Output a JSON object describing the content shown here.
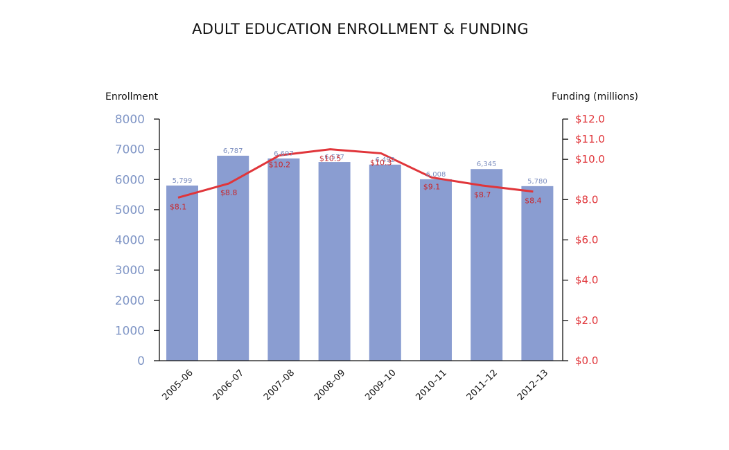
{
  "chart_data": {
    "type": "bar",
    "title": "ADULT EDUCATION ENROLLMENT & FUNDING",
    "categories": [
      "2005–06",
      "2006–07",
      "2007–08",
      "2008–09",
      "2009–10",
      "2010–11",
      "2011–12",
      "2012–13"
    ],
    "series": [
      {
        "type": "bar",
        "axis": "left",
        "values": [
          5799,
          6787,
          6697,
          6577,
          6492,
          6008,
          6345,
          5780
        ],
        "labels": [
          "5,799",
          "6,787",
          "6,697",
          "6,577",
          "6,492",
          "6,008",
          "6,345",
          "5,780"
        ],
        "color": "#8a9dd1"
      },
      {
        "type": "line",
        "axis": "right",
        "values": [
          8.1,
          8.8,
          10.2,
          10.5,
          10.3,
          9.1,
          8.7,
          8.4
        ],
        "labels": [
          "$8.1",
          "$8.8",
          "$10.2",
          "$10.5",
          "$10.3",
          "$9.1",
          "$8.7",
          "$8.4"
        ],
        "color": "#e0353a"
      }
    ],
    "ylabel_left": "Enrollment",
    "ylabel_right": "Funding (millions)",
    "ylim_left": [
      0,
      8000
    ],
    "ylim_right": [
      0,
      12
    ],
    "yticks_left": [
      "0",
      "1000",
      "2000",
      "3000",
      "4000",
      "5000",
      "6000",
      "7000",
      "8000"
    ],
    "yticks_right": [
      "$0.0",
      "$2.0",
      "$4.0",
      "$6.0",
      "$8.0",
      "$10.0",
      "$11.0",
      "$12.0"
    ],
    "yticks_right_values": [
      0,
      2,
      4,
      6,
      8,
      10,
      11,
      12
    ],
    "grid": false,
    "colors": {
      "bar": "#8a9dd1",
      "line": "#e0353a",
      "left_axis_text": "#8096c6",
      "right_axis_text": "#e0353a"
    }
  }
}
